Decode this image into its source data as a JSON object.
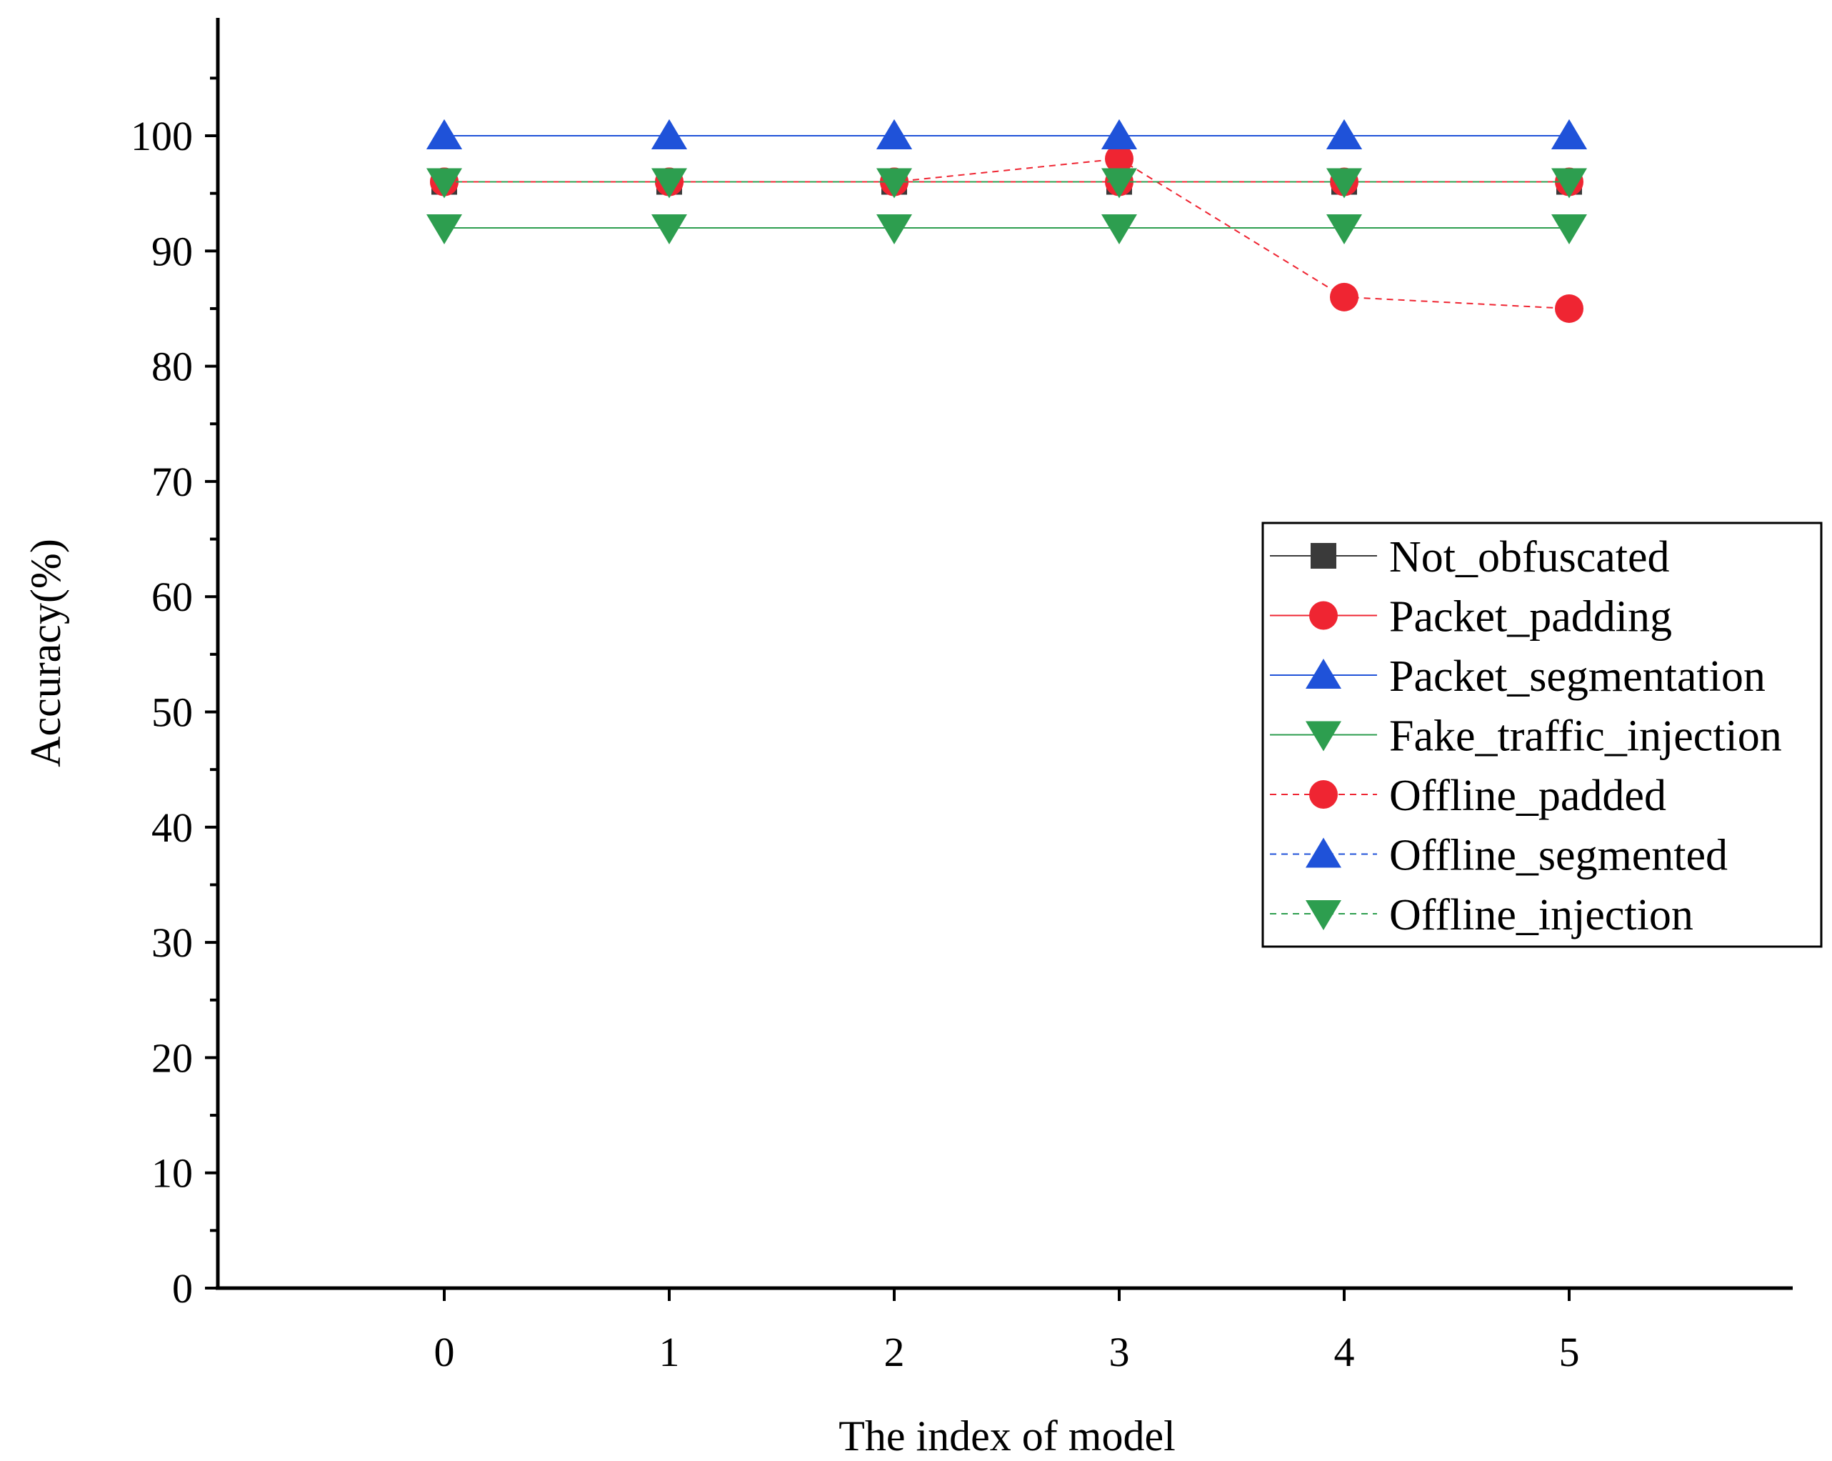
{
  "chart_data": {
    "type": "line",
    "title": "",
    "xlabel": "The index of model",
    "ylabel": "Accuracy(%)",
    "x": [
      0,
      1,
      2,
      3,
      4,
      5
    ],
    "xlim": [
      -1,
      6
    ],
    "ylim": [
      0,
      110
    ],
    "x_ticks": [
      0,
      1,
      2,
      3,
      4,
      5
    ],
    "y_ticks": [
      0,
      10,
      20,
      30,
      40,
      50,
      60,
      70,
      80,
      90,
      100
    ],
    "grid": false,
    "legend_position": "right",
    "series": [
      {
        "name": "Not_obfuscated",
        "values": [
          96,
          96,
          96,
          96,
          96,
          96
        ],
        "color": "#3a3a3a",
        "marker": "square",
        "dash": "solid"
      },
      {
        "name": "Packet_padding",
        "values": [
          96,
          96,
          96,
          96,
          96,
          96
        ],
        "color": "#ef2532",
        "marker": "circle",
        "dash": "solid"
      },
      {
        "name": "Packet_segmentation",
        "values": [
          100,
          100,
          100,
          100,
          100,
          100
        ],
        "color": "#1f52d9",
        "marker": "triangle-up",
        "dash": "solid"
      },
      {
        "name": "Fake_traffic_injection",
        "values": [
          92,
          92,
          92,
          92,
          92,
          92
        ],
        "color": "#2d9e4f",
        "marker": "triangle-down",
        "dash": "solid"
      },
      {
        "name": "Offline_padded",
        "values": [
          96,
          96,
          96,
          98,
          86,
          85
        ],
        "color": "#ef2532",
        "marker": "circle",
        "dash": "dashed"
      },
      {
        "name": "Offline_segmented",
        "values": [
          100,
          100,
          100,
          100,
          100,
          100
        ],
        "color": "#1f52d9",
        "marker": "triangle-up",
        "dash": "dashed"
      },
      {
        "name": "Offline_injection",
        "values": [
          96,
          96,
          96,
          96,
          96,
          96
        ],
        "color": "#2d9e4f",
        "marker": "triangle-down",
        "dash": "dashed"
      }
    ]
  }
}
